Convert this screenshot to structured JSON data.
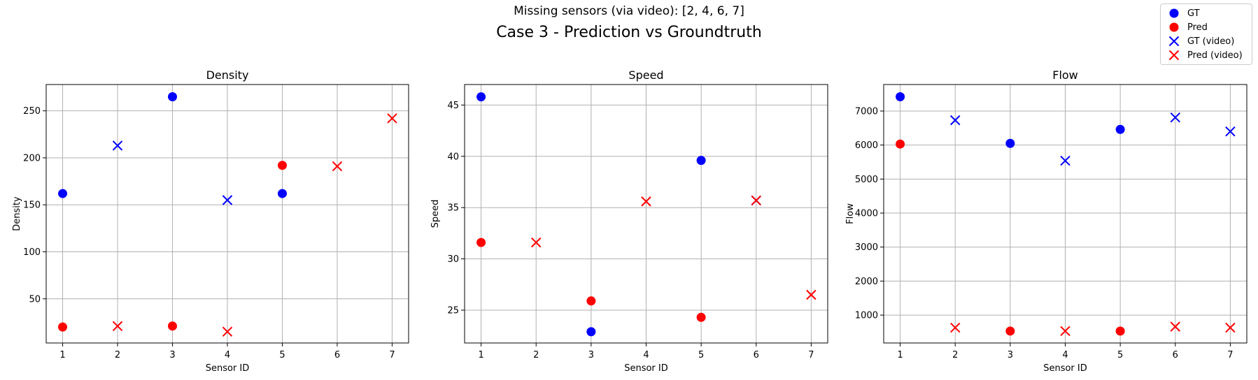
{
  "figure": {
    "supertitle": "Missing sensors (via video): [2, 4, 6, 7]",
    "title": "Case 3 - Prediction vs Groundtruth"
  },
  "colors": {
    "gt": "#0000ff",
    "pred": "#ff0000",
    "grid": "#b0b0b0",
    "axes": "#000000"
  },
  "legend": {
    "placement": "top-right",
    "entries": [
      {
        "label": "GT",
        "marker": "circle",
        "color": "#0000ff"
      },
      {
        "label": "Pred",
        "marker": "circle",
        "color": "#ff0000"
      },
      {
        "label": "GT (video)",
        "marker": "x",
        "color": "#0000ff"
      },
      {
        "label": "Pred (video)",
        "marker": "x",
        "color": "#ff0000"
      }
    ]
  },
  "chart_data": [
    {
      "type": "scatter",
      "title": "Density",
      "xlabel": "Sensor ID",
      "ylabel": "Density",
      "xlim": [
        0.7,
        7.3
      ],
      "ylim": [
        3,
        278
      ],
      "xticks": [
        1,
        2,
        3,
        4,
        5,
        6,
        7
      ],
      "yticks": [
        50,
        100,
        150,
        200,
        250
      ],
      "grid": true,
      "series": [
        {
          "name": "GT",
          "marker": "circle",
          "color": "#0000ff",
          "x": [
            1,
            3,
            5
          ],
          "y": [
            162,
            265,
            162
          ]
        },
        {
          "name": "Pred",
          "marker": "circle",
          "color": "#ff0000",
          "x": [
            1,
            3,
            5
          ],
          "y": [
            20,
            21,
            192
          ]
        },
        {
          "name": "GT (video)",
          "marker": "x",
          "color": "#0000ff",
          "x": [
            2,
            4
          ],
          "y": [
            213,
            155
          ]
        },
        {
          "name": "Pred (video)",
          "marker": "x",
          "color": "#ff0000",
          "x": [
            2,
            4,
            6,
            7
          ],
          "y": [
            21,
            15,
            191,
            242
          ]
        }
      ]
    },
    {
      "type": "scatter",
      "title": "Speed",
      "xlabel": "Sensor ID",
      "ylabel": "Speed",
      "xlim": [
        0.7,
        7.3
      ],
      "ylim": [
        21.8,
        47.0
      ],
      "xticks": [
        1,
        2,
        3,
        4,
        5,
        6,
        7
      ],
      "yticks": [
        25,
        30,
        35,
        40,
        45
      ],
      "grid": true,
      "series": [
        {
          "name": "GT",
          "marker": "circle",
          "color": "#0000ff",
          "x": [
            1,
            3,
            5
          ],
          "y": [
            45.8,
            22.9,
            39.6
          ]
        },
        {
          "name": "Pred",
          "marker": "circle",
          "color": "#ff0000",
          "x": [
            1,
            3,
            5
          ],
          "y": [
            31.6,
            25.9,
            24.3
          ]
        },
        {
          "name": "GT (video)",
          "marker": "x",
          "color": "#0000ff",
          "x": [
            6
          ],
          "y": [
            35.7
          ]
        },
        {
          "name": "Pred (video)",
          "marker": "x",
          "color": "#ff0000",
          "x": [
            2,
            4,
            6,
            7
          ],
          "y": [
            31.6,
            35.6,
            35.7,
            26.5
          ]
        }
      ]
    },
    {
      "type": "scatter",
      "title": "Flow",
      "xlabel": "Sensor ID",
      "ylabel": "Flow",
      "xlim": [
        0.7,
        7.3
      ],
      "ylim": [
        180,
        7780
      ],
      "xticks": [
        1,
        2,
        3,
        4,
        5,
        6,
        7
      ],
      "yticks": [
        1000,
        2000,
        3000,
        4000,
        5000,
        6000,
        7000
      ],
      "grid": true,
      "series": [
        {
          "name": "GT",
          "marker": "circle",
          "color": "#0000ff",
          "x": [
            1,
            3,
            5
          ],
          "y": [
            7420,
            6050,
            6460
          ]
        },
        {
          "name": "Pred",
          "marker": "circle",
          "color": "#ff0000",
          "x": [
            1,
            3,
            5
          ],
          "y": [
            6030,
            530,
            530
          ]
        },
        {
          "name": "GT (video)",
          "marker": "x",
          "color": "#0000ff",
          "x": [
            2,
            4,
            6,
            7
          ],
          "y": [
            6730,
            5540,
            6810,
            6400
          ]
        },
        {
          "name": "Pred (video)",
          "marker": "x",
          "color": "#ff0000",
          "x": [
            2,
            4,
            6,
            7
          ],
          "y": [
            630,
            530,
            660,
            630
          ]
        }
      ]
    }
  ]
}
